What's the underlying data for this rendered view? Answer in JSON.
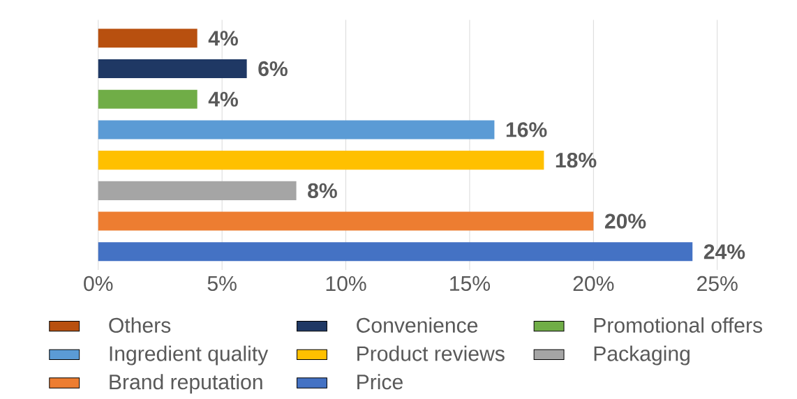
{
  "chart_data": {
    "type": "bar",
    "orientation": "horizontal",
    "categories": [
      null,
      null,
      null,
      null,
      null,
      null,
      null,
      null
    ],
    "series": [
      {
        "name": "Others",
        "color": "#b8500f",
        "values": [
          4,
          null,
          null,
          null,
          null,
          null,
          null,
          null
        ],
        "value_labels": [
          "4%",
          null,
          null,
          null,
          null,
          null,
          null,
          null
        ]
      },
      {
        "name": "Convenience",
        "color": "#1f3864",
        "values": [
          null,
          6,
          null,
          null,
          null,
          null,
          null,
          null
        ],
        "value_labels": [
          null,
          "6%",
          null,
          null,
          null,
          null,
          null,
          null
        ]
      },
      {
        "name": "Promotional offers",
        "color": "#70ad47",
        "values": [
          null,
          null,
          4,
          null,
          null,
          null,
          null,
          null
        ],
        "value_labels": [
          null,
          null,
          "4%",
          null,
          null,
          null,
          null,
          null
        ]
      },
      {
        "name": "Ingredient quality",
        "color": "#5b9bd5",
        "values": [
          null,
          null,
          null,
          16,
          null,
          null,
          null,
          null
        ],
        "value_labels": [
          null,
          null,
          null,
          "16%",
          null,
          null,
          null,
          null
        ]
      },
      {
        "name": "Product reviews",
        "color": "#ffc000",
        "values": [
          null,
          null,
          null,
          null,
          18,
          null,
          null,
          null
        ],
        "value_labels": [
          null,
          null,
          null,
          null,
          "18%",
          null,
          null,
          null
        ]
      },
      {
        "name": "Packaging",
        "color": "#a5a5a5",
        "values": [
          null,
          null,
          null,
          null,
          null,
          8,
          null,
          null
        ],
        "value_labels": [
          null,
          null,
          null,
          null,
          null,
          "8%",
          null,
          null
        ]
      },
      {
        "name": "Brand reputation",
        "color": "#ed7d31",
        "values": [
          null,
          null,
          null,
          null,
          null,
          null,
          20,
          null
        ],
        "value_labels": [
          null,
          null,
          null,
          null,
          null,
          null,
          "20%",
          null
        ]
      },
      {
        "name": "Price",
        "color": "#4472c4",
        "values": [
          null,
          null,
          null,
          null,
          null,
          null,
          null,
          24
        ],
        "value_labels": [
          null,
          null,
          null,
          null,
          null,
          null,
          null,
          "24%"
        ]
      }
    ],
    "xlim": [
      0,
      25
    ],
    "xticks": [
      {
        "value": 0,
        "label": "0%"
      },
      {
        "value": 5,
        "label": "5%"
      },
      {
        "value": 10,
        "label": "10%"
      },
      {
        "value": 15,
        "label": "15%"
      },
      {
        "value": 20,
        "label": "20%"
      },
      {
        "value": 25,
        "label": "25%"
      }
    ],
    "grid": "x",
    "legend": "bottom"
  }
}
